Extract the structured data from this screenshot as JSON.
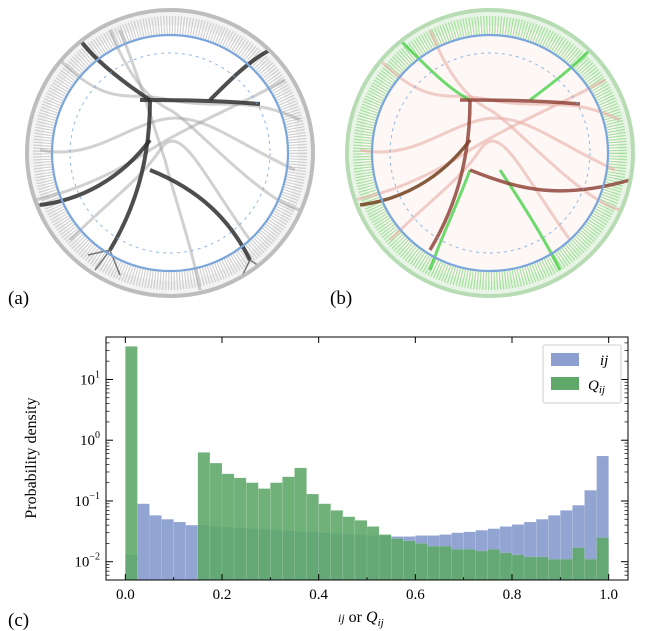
{
  "panels": {
    "a_label": "(a)",
    "b_label": "(b)",
    "c_label": "(c)"
  },
  "colors": {
    "blue": "#8c9fcf",
    "green": "#5fa86a",
    "ring_blue": "#7aa6dc",
    "dark_edge": "#333333",
    "red_edge": "#8a3b2f",
    "bright_green": "#3ecf3e"
  },
  "chart_data": {
    "type": "bar",
    "xlabel": "ij or Q_ij",
    "xlabel_parts": {
      "prefix": "ij",
      "mid": " or ",
      "q": "Q",
      "sub": "ij"
    },
    "ylabel": "Probability density",
    "xlim": [
      -0.04,
      1.04
    ],
    "ylim": [
      0.005,
      50
    ],
    "yscale": "log",
    "xticks": [
      "0.0",
      "0.2",
      "0.4",
      "0.6",
      "0.8",
      "1.0"
    ],
    "xtick_values": [
      0.0,
      0.2,
      0.4,
      0.6,
      0.8,
      1.0
    ],
    "yticks": [
      {
        "value": 0.01,
        "base": "10",
        "exp": "−2"
      },
      {
        "value": 0.1,
        "base": "10",
        "exp": "−1"
      },
      {
        "value": 1,
        "base": "10",
        "exp": "0"
      },
      {
        "value": 10,
        "base": "10",
        "exp": "1"
      }
    ],
    "legend_position": "top-right",
    "bin_width": 0.025,
    "bin_starts": [
      0.0,
      0.025,
      0.05,
      0.075,
      0.1,
      0.125,
      0.15,
      0.175,
      0.2,
      0.225,
      0.25,
      0.275,
      0.3,
      0.325,
      0.35,
      0.375,
      0.4,
      0.425,
      0.45,
      0.475,
      0.5,
      0.525,
      0.55,
      0.575,
      0.6,
      0.625,
      0.65,
      0.675,
      0.7,
      0.725,
      0.75,
      0.775,
      0.8,
      0.825,
      0.85,
      0.875,
      0.9,
      0.925,
      0.95,
      0.975
    ],
    "series": [
      {
        "name": "ij",
        "color": "#8c9fcf",
        "values": [
          0.013,
          0.09,
          0.058,
          0.05,
          0.045,
          0.04,
          0.04,
          0.038,
          0.037,
          0.036,
          0.035,
          0.034,
          0.033,
          0.032,
          0.031,
          0.031,
          0.03,
          0.029,
          0.028,
          0.028,
          0.027,
          0.027,
          0.026,
          0.026,
          0.027,
          0.027,
          0.028,
          0.03,
          0.031,
          0.033,
          0.035,
          0.038,
          0.041,
          0.045,
          0.05,
          0.058,
          0.07,
          0.085,
          0.15,
          0.55
        ]
      },
      {
        "name": "Q_ij",
        "color": "#5fa86a",
        "values": [
          35,
          0,
          0,
          0,
          0,
          0,
          0.63,
          0.42,
          0.28,
          0.24,
          0.2,
          0.16,
          0.2,
          0.25,
          0.35,
          0.13,
          0.09,
          0.07,
          0.055,
          0.048,
          0.038,
          0.028,
          0.024,
          0.022,
          0.02,
          0.018,
          0.018,
          0.016,
          0.016,
          0.015,
          0.016,
          0.014,
          0.013,
          0.012,
          0.012,
          0.011,
          0.011,
          0.017,
          0.011,
          0.025
        ]
      }
    ]
  }
}
